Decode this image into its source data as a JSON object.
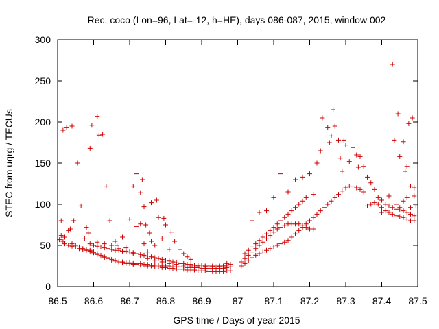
{
  "chart_data": {
    "type": "scatter",
    "title": "Rec. coco (Lon=96, Lat=-12, h=HE), days 086-087, 2015, window 002",
    "xlabel": "GPS time / Days of year 2015",
    "ylabel": "STEC from uqrg / TECUs",
    "xlim": [
      86.5,
      87.5
    ],
    "ylim": [
      0,
      300
    ],
    "x_ticks": [
      86.5,
      86.6,
      86.7,
      86.8,
      86.9,
      87.0,
      87.1,
      87.2,
      87.3,
      87.4,
      87.5
    ],
    "x_tick_labels": [
      "86.5",
      "86.6",
      "86.7",
      "86.8",
      "86.9",
      "87",
      "87.1",
      "87.2",
      "87.3",
      "87.4",
      "87.5"
    ],
    "y_ticks": [
      0,
      50,
      100,
      150,
      200,
      250,
      300
    ],
    "y_tick_labels": [
      "0",
      "50",
      "100",
      "150",
      "200",
      "250",
      "300"
    ],
    "grid": false,
    "marker": "plus",
    "color": "#cc0000",
    "points": [
      [
        86.505,
        57
      ],
      [
        86.51,
        62
      ],
      [
        86.515,
        55
      ],
      [
        86.52,
        60
      ],
      [
        86.53,
        68
      ],
      [
        86.54,
        52
      ],
      [
        86.55,
        50
      ],
      [
        86.56,
        48
      ],
      [
        86.57,
        46
      ],
      [
        86.58,
        45
      ],
      [
        86.59,
        44
      ],
      [
        86.6,
        42
      ],
      [
        86.61,
        40
      ],
      [
        86.62,
        38
      ],
      [
        86.63,
        36
      ],
      [
        86.64,
        35
      ],
      [
        86.65,
        33
      ],
      [
        86.66,
        32
      ],
      [
        86.67,
        30
      ],
      [
        86.68,
        29
      ],
      [
        86.69,
        28
      ],
      [
        86.7,
        28
      ],
      [
        86.71,
        27
      ],
      [
        86.72,
        27
      ],
      [
        86.73,
        26
      ],
      [
        86.74,
        26
      ],
      [
        86.75,
        25
      ],
      [
        86.76,
        25
      ],
      [
        86.77,
        24
      ],
      [
        86.78,
        24
      ],
      [
        86.79,
        23
      ],
      [
        86.8,
        23
      ],
      [
        86.81,
        22
      ],
      [
        86.82,
        22
      ],
      [
        86.83,
        21
      ],
      [
        86.84,
        21
      ],
      [
        86.85,
        21
      ],
      [
        86.86,
        20
      ],
      [
        86.87,
        20
      ],
      [
        86.88,
        20
      ],
      [
        86.89,
        19
      ],
      [
        86.9,
        19
      ],
      [
        86.91,
        19
      ],
      [
        86.92,
        18
      ],
      [
        86.93,
        18
      ],
      [
        86.94,
        18
      ],
      [
        86.95,
        18
      ],
      [
        86.96,
        18
      ],
      [
        86.97,
        19
      ],
      [
        86.98,
        19
      ],
      [
        86.52,
        52
      ],
      [
        86.53,
        50
      ],
      [
        86.54,
        49
      ],
      [
        86.55,
        48
      ],
      [
        86.56,
        46
      ],
      [
        86.57,
        45
      ],
      [
        86.58,
        44
      ],
      [
        86.59,
        43
      ],
      [
        86.6,
        41
      ],
      [
        86.61,
        39
      ],
      [
        86.62,
        37
      ],
      [
        86.63,
        35
      ],
      [
        86.64,
        34
      ],
      [
        86.65,
        32
      ],
      [
        86.66,
        31
      ],
      [
        86.67,
        30
      ],
      [
        86.68,
        30
      ],
      [
        86.69,
        29
      ],
      [
        86.7,
        29
      ],
      [
        86.71,
        28
      ],
      [
        86.72,
        28
      ],
      [
        86.73,
        28
      ],
      [
        86.74,
        27
      ],
      [
        86.75,
        27
      ],
      [
        86.76,
        26
      ],
      [
        86.77,
        26
      ],
      [
        86.78,
        26
      ],
      [
        86.79,
        25
      ],
      [
        86.8,
        25
      ],
      [
        86.81,
        25
      ],
      [
        86.82,
        24
      ],
      [
        86.83,
        24
      ],
      [
        86.84,
        24
      ],
      [
        86.85,
        24
      ],
      [
        86.86,
        23
      ],
      [
        86.87,
        23
      ],
      [
        86.88,
        23
      ],
      [
        86.89,
        23
      ],
      [
        86.9,
        22
      ],
      [
        86.91,
        22
      ],
      [
        86.92,
        22
      ],
      [
        86.93,
        22
      ],
      [
        86.94,
        22
      ],
      [
        86.95,
        22
      ],
      [
        86.96,
        22
      ],
      [
        86.97,
        23
      ],
      [
        86.98,
        24
      ],
      [
        86.59,
        52
      ],
      [
        86.6,
        50
      ],
      [
        86.61,
        49
      ],
      [
        86.62,
        48
      ],
      [
        86.63,
        47
      ],
      [
        86.64,
        46
      ],
      [
        86.65,
        45
      ],
      [
        86.66,
        44
      ],
      [
        86.67,
        44
      ],
      [
        86.68,
        43
      ],
      [
        86.69,
        42
      ],
      [
        86.7,
        42
      ],
      [
        86.71,
        41
      ],
      [
        86.72,
        40
      ],
      [
        86.73,
        39
      ],
      [
        86.74,
        38
      ],
      [
        86.75,
        37
      ],
      [
        86.76,
        36
      ],
      [
        86.77,
        35
      ],
      [
        86.78,
        34
      ],
      [
        86.79,
        33
      ],
      [
        86.8,
        32
      ],
      [
        86.81,
        31
      ],
      [
        86.82,
        30
      ],
      [
        86.83,
        29
      ],
      [
        86.84,
        28
      ],
      [
        86.85,
        28
      ],
      [
        86.86,
        27
      ],
      [
        86.87,
        27
      ],
      [
        86.88,
        26
      ],
      [
        86.89,
        26
      ],
      [
        86.9,
        26
      ],
      [
        86.91,
        25
      ],
      [
        86.92,
        25
      ],
      [
        86.93,
        25
      ],
      [
        86.94,
        24
      ],
      [
        86.95,
        24
      ],
      [
        86.96,
        25
      ],
      [
        86.97,
        26
      ],
      [
        86.98,
        27
      ],
      [
        86.61,
        54
      ],
      [
        86.63,
        52
      ],
      [
        86.65,
        50
      ],
      [
        86.67,
        46
      ],
      [
        86.69,
        43
      ],
      [
        86.71,
        40
      ],
      [
        86.73,
        37
      ],
      [
        86.75,
        34
      ],
      [
        86.77,
        32
      ],
      [
        86.79,
        30
      ],
      [
        86.81,
        28
      ],
      [
        86.83,
        27
      ],
      [
        86.85,
        26
      ],
      [
        86.87,
        25
      ],
      [
        86.89,
        25
      ],
      [
        86.91,
        24
      ],
      [
        86.93,
        24
      ],
      [
        86.95,
        25
      ],
      [
        86.97,
        28
      ],
      [
        86.51,
        80
      ],
      [
        86.515,
        190
      ],
      [
        86.525,
        193
      ],
      [
        86.535,
        70
      ],
      [
        86.54,
        195
      ],
      [
        86.545,
        80
      ],
      [
        86.555,
        150
      ],
      [
        86.565,
        98
      ],
      [
        86.575,
        58
      ],
      [
        86.58,
        72
      ],
      [
        86.585,
        65
      ],
      [
        86.59,
        168
      ],
      [
        86.595,
        196
      ],
      [
        86.61,
        207
      ],
      [
        86.615,
        184
      ],
      [
        86.625,
        185
      ],
      [
        86.635,
        122
      ],
      [
        86.645,
        80
      ],
      [
        86.66,
        55
      ],
      [
        86.665,
        50
      ],
      [
        86.68,
        60
      ],
      [
        86.69,
        47
      ],
      [
        86.7,
        82
      ],
      [
        86.71,
        122
      ],
      [
        86.72,
        137
      ],
      [
        86.73,
        114
      ],
      [
        86.735,
        130
      ],
      [
        86.74,
        97
      ],
      [
        86.745,
        75
      ],
      [
        86.755,
        65
      ],
      [
        86.76,
        102
      ],
      [
        86.77,
        50
      ],
      [
        86.775,
        105
      ],
      [
        86.78,
        84
      ],
      [
        86.79,
        58
      ],
      [
        86.795,
        83
      ],
      [
        86.8,
        75
      ],
      [
        86.81,
        45
      ],
      [
        86.815,
        66
      ],
      [
        86.825,
        55
      ],
      [
        86.84,
        45
      ],
      [
        86.85,
        40
      ],
      [
        86.86,
        36
      ],
      [
        86.87,
        33
      ],
      [
        86.72,
        73
      ],
      [
        86.73,
        76
      ],
      [
        86.74,
        52
      ],
      [
        86.76,
        55
      ],
      [
        86.75,
        42
      ],
      [
        87.01,
        25
      ],
      [
        87.02,
        28
      ],
      [
        87.03,
        32
      ],
      [
        87.04,
        35
      ],
      [
        87.05,
        38
      ],
      [
        87.06,
        40
      ],
      [
        87.07,
        42
      ],
      [
        87.08,
        44
      ],
      [
        87.09,
        46
      ],
      [
        87.1,
        48
      ],
      [
        87.11,
        50
      ],
      [
        87.12,
        52
      ],
      [
        87.13,
        54
      ],
      [
        87.14,
        56
      ],
      [
        87.15,
        60
      ],
      [
        87.16,
        64
      ],
      [
        87.17,
        68
      ],
      [
        87.18,
        72
      ],
      [
        87.19,
        76
      ],
      [
        87.2,
        80
      ],
      [
        87.21,
        84
      ],
      [
        87.22,
        88
      ],
      [
        87.23,
        92
      ],
      [
        87.24,
        96
      ],
      [
        87.25,
        100
      ],
      [
        87.26,
        104
      ],
      [
        87.27,
        108
      ],
      [
        87.28,
        112
      ],
      [
        87.29,
        116
      ],
      [
        87.3,
        120
      ],
      [
        87.31,
        122
      ],
      [
        87.32,
        122
      ],
      [
        87.33,
        120
      ],
      [
        87.34,
        118
      ],
      [
        87.35,
        115
      ],
      [
        87.01,
        30
      ],
      [
        87.02,
        34
      ],
      [
        87.03,
        38
      ],
      [
        87.04,
        42
      ],
      [
        87.05,
        46
      ],
      [
        87.06,
        50
      ],
      [
        87.07,
        54
      ],
      [
        87.08,
        58
      ],
      [
        87.09,
        62
      ],
      [
        87.1,
        66
      ],
      [
        87.11,
        70
      ],
      [
        87.12,
        72
      ],
      [
        87.13,
        74
      ],
      [
        87.14,
        76
      ],
      [
        87.15,
        76
      ],
      [
        87.16,
        76
      ],
      [
        87.17,
        76
      ],
      [
        87.18,
        74
      ],
      [
        87.19,
        72
      ],
      [
        87.2,
        70
      ],
      [
        87.21,
        70
      ],
      [
        87.02,
        40
      ],
      [
        87.03,
        44
      ],
      [
        87.04,
        48
      ],
      [
        87.05,
        52
      ],
      [
        87.06,
        56
      ],
      [
        87.07,
        60
      ],
      [
        87.08,
        64
      ],
      [
        87.09,
        68
      ],
      [
        87.1,
        72
      ],
      [
        87.11,
        76
      ],
      [
        87.12,
        80
      ],
      [
        87.13,
        84
      ],
      [
        87.14,
        88
      ],
      [
        87.15,
        92
      ],
      [
        87.16,
        96
      ],
      [
        87.17,
        100
      ],
      [
        87.18,
        104
      ],
      [
        87.19,
        108
      ],
      [
        87.04,
        80
      ],
      [
        87.06,
        90
      ],
      [
        87.08,
        92
      ],
      [
        87.1,
        108
      ],
      [
        87.12,
        137
      ],
      [
        87.14,
        115
      ],
      [
        87.16,
        130
      ],
      [
        87.18,
        133
      ],
      [
        87.2,
        137
      ],
      [
        87.21,
        112
      ],
      [
        87.22,
        150
      ],
      [
        87.23,
        165
      ],
      [
        87.235,
        205
      ],
      [
        87.25,
        193
      ],
      [
        87.255,
        175
      ],
      [
        87.26,
        183
      ],
      [
        87.265,
        215
      ],
      [
        87.27,
        195
      ],
      [
        87.28,
        178
      ],
      [
        87.285,
        156
      ],
      [
        87.29,
        140
      ],
      [
        87.295,
        178
      ],
      [
        87.3,
        172
      ],
      [
        87.31,
        152
      ],
      [
        87.32,
        169
      ],
      [
        87.33,
        160
      ],
      [
        87.335,
        145
      ],
      [
        87.34,
        158
      ],
      [
        87.35,
        146
      ],
      [
        87.36,
        133
      ],
      [
        87.37,
        126
      ],
      [
        87.38,
        118
      ],
      [
        87.39,
        108
      ],
      [
        87.4,
        105
      ],
      [
        87.41,
        100
      ],
      [
        87.42,
        98
      ],
      [
        87.43,
        96
      ],
      [
        87.44,
        94
      ],
      [
        87.45,
        93
      ],
      [
        87.46,
        92
      ],
      [
        87.47,
        90
      ],
      [
        87.48,
        88
      ],
      [
        87.49,
        86
      ],
      [
        87.36,
        98
      ],
      [
        87.37,
        100
      ],
      [
        87.38,
        102
      ],
      [
        87.39,
        100
      ],
      [
        87.4,
        96
      ],
      [
        87.41,
        92
      ],
      [
        87.42,
        90
      ],
      [
        87.43,
        88
      ],
      [
        87.44,
        86
      ],
      [
        87.45,
        85
      ],
      [
        87.46,
        84
      ],
      [
        87.47,
        82
      ],
      [
        87.48,
        80
      ],
      [
        87.49,
        80
      ],
      [
        87.43,
        270
      ],
      [
        87.435,
        178
      ],
      [
        87.445,
        210
      ],
      [
        87.45,
        158
      ],
      [
        87.46,
        176
      ],
      [
        87.465,
        140
      ],
      [
        87.47,
        146
      ],
      [
        87.475,
        198
      ],
      [
        87.48,
        122
      ],
      [
        87.485,
        205
      ],
      [
        87.49,
        110
      ],
      [
        87.495,
        98
      ],
      [
        87.42,
        110
      ],
      [
        87.44,
        100
      ],
      [
        87.46,
        104
      ],
      [
        87.48,
        96
      ],
      [
        87.49,
        120
      ],
      [
        87.4,
        90
      ],
      [
        87.47,
        108
      ],
      [
        87.45,
        96
      ]
    ]
  }
}
